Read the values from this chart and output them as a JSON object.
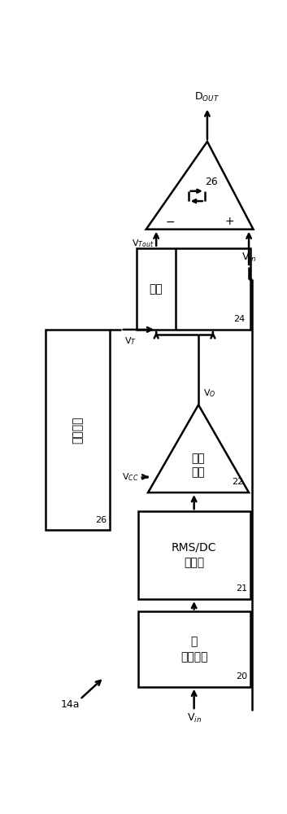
{
  "bg": "#ffffff",
  "lc": "#000000",
  "box20_l1": "带",
  "box20_l2": "通滤波器",
  "box20_num": "20",
  "box21_l1": "RMS/DC",
  "box21_l2": "转换器",
  "box21_num": "21",
  "box22_l1": "定相",
  "box22_l2": "回路",
  "box22_num": "22",
  "box24_left": "最小",
  "box24_num": "24",
  "box26_text": "最大阈值",
  "box26_num": "26",
  "comp_num": "26",
  "lbl_14a": "14a",
  "lbl_vin_bot": "V$_{in}$",
  "lbl_vin_right": "V$_{in}$",
  "lbl_vcc": "V$_{CC}$",
  "lbl_vo": "V$_{O}$",
  "lbl_vt": "V$_{T}$",
  "lbl_vtout": "V$_{Tout}$",
  "lbl_dout": "D$_{OUT}$",
  "lbl_minus": "−",
  "lbl_plus": "+"
}
